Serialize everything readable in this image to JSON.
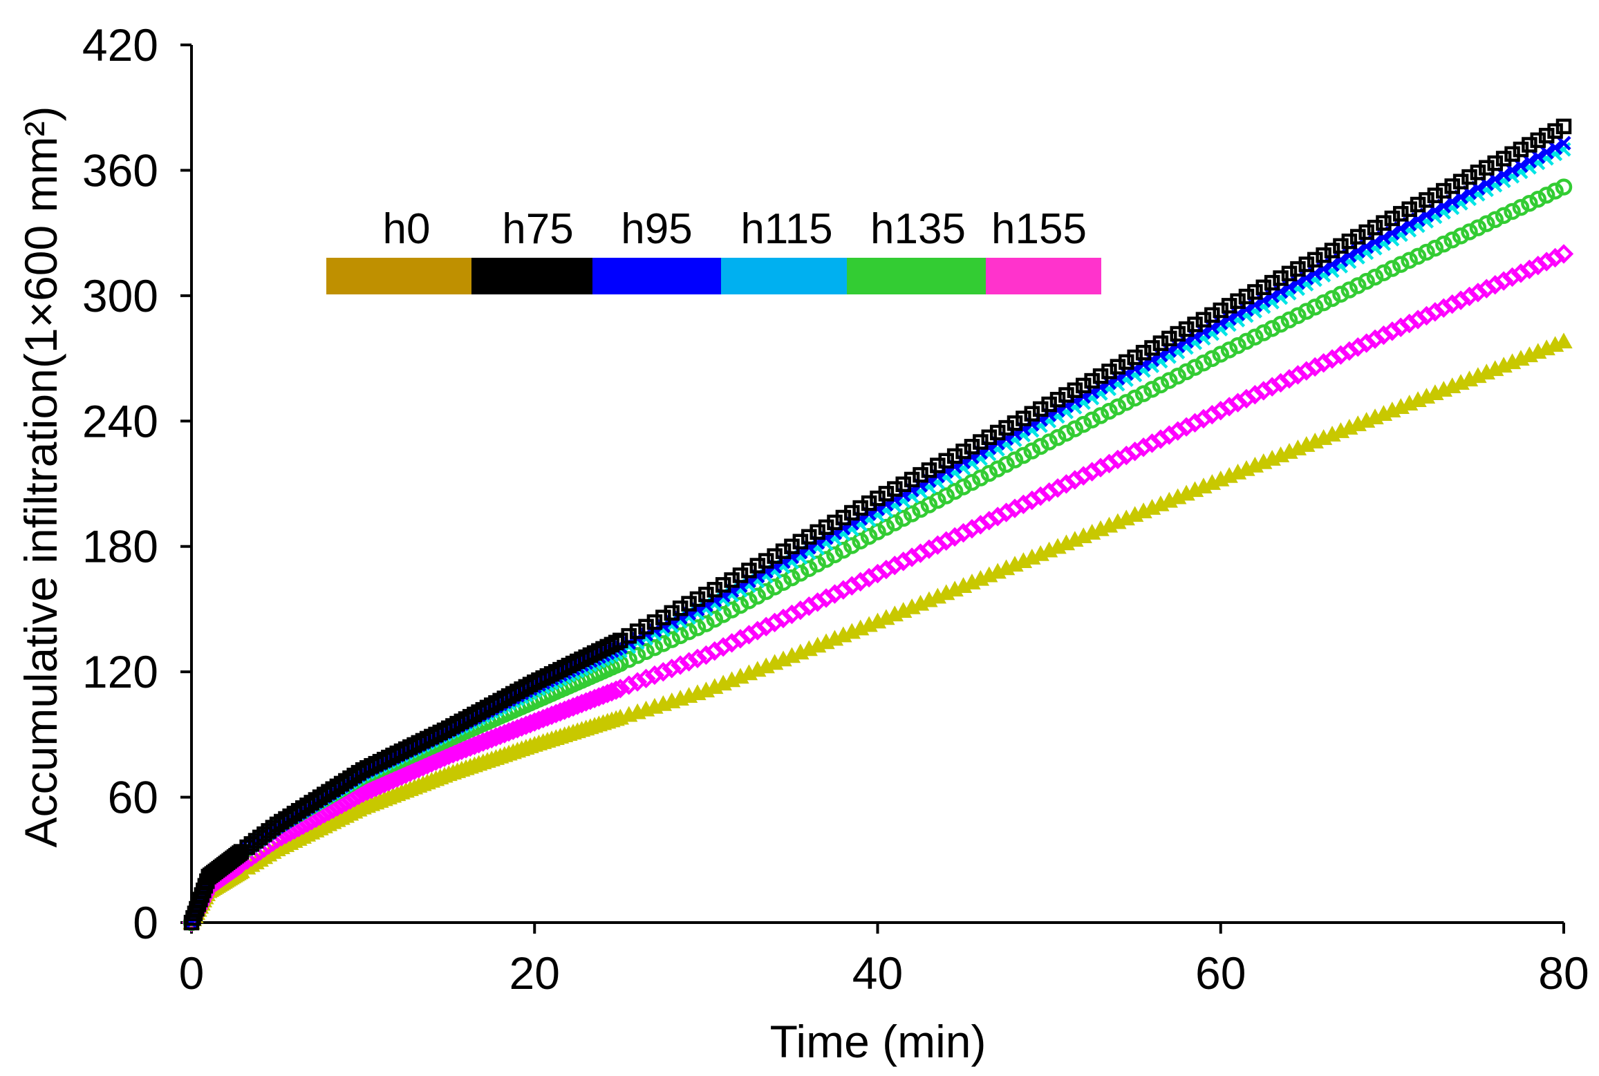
{
  "chart_data": {
    "type": "scatter",
    "xlabel": "Time (min)",
    "ylabel": "Accumulative infiltration(1×600 mm²)",
    "xlim": [
      0,
      80
    ],
    "ylim": [
      0,
      420
    ],
    "xticks": [
      "0",
      "20",
      "40",
      "60",
      "80"
    ],
    "yticks": [
      "0",
      "60",
      "120",
      "180",
      "240",
      "300",
      "360",
      "420"
    ],
    "grid": false,
    "legend_position": "top-left",
    "legend": [
      {
        "name": "h0",
        "color": "#BF9000"
      },
      {
        "name": "h75",
        "color": "#000000"
      },
      {
        "name": "h95",
        "color": "#0000FF"
      },
      {
        "name": "h115",
        "color": "#00B0F0"
      },
      {
        "name": "h135",
        "color": "#33CC33"
      },
      {
        "name": "h155",
        "color": "#FF33CC"
      }
    ],
    "series": [
      {
        "name": "h0",
        "marker": "triangle",
        "color": "#C8C800",
        "x": [
          0,
          1,
          5,
          10,
          15,
          20,
          25,
          30,
          40,
          50,
          60,
          70,
          80
        ],
        "y": [
          0,
          15,
          35,
          55,
          71,
          85,
          98,
          111,
          144,
          178,
          212,
          245,
          278
        ]
      },
      {
        "name": "h75",
        "marker": "square",
        "color": "#000000",
        "x": [
          0,
          1,
          5,
          10,
          15,
          20,
          25,
          30,
          40,
          50,
          60,
          70,
          80
        ],
        "y": [
          0,
          22,
          47,
          73,
          93,
          115,
          135,
          157,
          203,
          248,
          293,
          337,
          381
        ]
      },
      {
        "name": "h95",
        "marker": "cross",
        "color": "#0000FF",
        "x": [
          0,
          1,
          5,
          10,
          15,
          20,
          25,
          30,
          40,
          50,
          60,
          70,
          80
        ],
        "y": [
          0,
          22,
          46,
          72,
          92,
          113,
          132,
          152,
          198,
          243,
          287,
          330,
          373
        ]
      },
      {
        "name": "h115",
        "marker": "cross",
        "color": "#00E5E5",
        "x": [
          0,
          1,
          5,
          10,
          15,
          20,
          25,
          30,
          40,
          50,
          60,
          70,
          80
        ],
        "y": [
          0,
          22,
          46,
          71,
          91,
          111,
          130,
          150,
          195,
          240,
          284,
          327,
          370
        ]
      },
      {
        "name": "h135",
        "marker": "circle",
        "color": "#33CC33",
        "x": [
          0,
          1,
          5,
          10,
          15,
          20,
          25,
          30,
          40,
          50,
          60,
          70,
          80
        ],
        "y": [
          0,
          22,
          46,
          70,
          88,
          106,
          124,
          143,
          187,
          230,
          272,
          313,
          352
        ]
      },
      {
        "name": "h155",
        "marker": "diamond",
        "color": "#FF00FF",
        "x": [
          0,
          1,
          5,
          10,
          15,
          20,
          25,
          30,
          40,
          50,
          60,
          70,
          80
        ],
        "y": [
          0,
          17,
          40,
          62,
          80,
          96,
          112,
          128,
          167,
          206,
          245,
          283,
          320
        ]
      }
    ]
  }
}
